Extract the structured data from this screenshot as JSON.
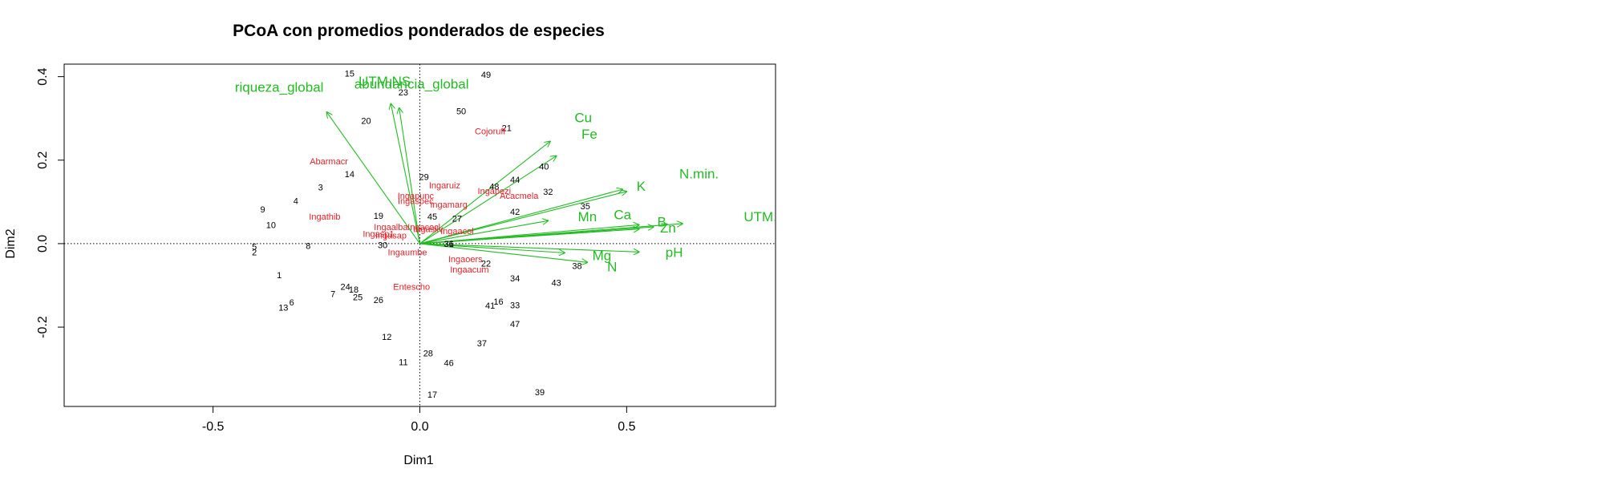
{
  "chart_data": {
    "type": "scatter",
    "title": "PCoA con promedios ponderados de especies",
    "xlabel": "Dim1",
    "ylabel": "Dim2",
    "xlim": [
      -0.86,
      0.86
    ],
    "ylim": [
      -0.39,
      0.43
    ],
    "x_ticks": [
      -0.5,
      0.0,
      0.5
    ],
    "x_tick_labels": [
      "-0.5",
      "0.0",
      "0.5"
    ],
    "y_ticks": [
      -0.2,
      0.0,
      0.2,
      0.4
    ],
    "y_tick_labels": [
      "-0.2",
      "0.0",
      "0.2",
      "0.4"
    ],
    "reference_lines": [
      0,
      0
    ],
    "colors": {
      "sites": "#000000",
      "species": "#e8202a",
      "vectors": "#22bb22"
    },
    "sites": [
      {
        "label": "1",
        "x": -0.34,
        "y": -0.075
      },
      {
        "label": "2",
        "x": -0.4,
        "y": -0.02
      },
      {
        "label": "5",
        "x": -0.4,
        "y": -0.007
      },
      {
        "label": "3",
        "x": -0.24,
        "y": 0.135
      },
      {
        "label": "4",
        "x": -0.3,
        "y": 0.103
      },
      {
        "label": "6",
        "x": -0.31,
        "y": -0.14
      },
      {
        "label": "7",
        "x": -0.21,
        "y": -0.12
      },
      {
        "label": "8",
        "x": -0.27,
        "y": -0.005
      },
      {
        "label": "9",
        "x": -0.38,
        "y": 0.082
      },
      {
        "label": "10",
        "x": -0.36,
        "y": 0.045
      },
      {
        "label": "11",
        "x": -0.04,
        "y": -0.283
      },
      {
        "label": "12",
        "x": -0.08,
        "y": -0.223
      },
      {
        "label": "13",
        "x": -0.33,
        "y": -0.153
      },
      {
        "label": "14",
        "x": -0.17,
        "y": 0.167
      },
      {
        "label": "15",
        "x": -0.17,
        "y": 0.408
      },
      {
        "label": "16",
        "x": 0.19,
        "y": -0.138
      },
      {
        "label": "17",
        "x": 0.03,
        "y": -0.361
      },
      {
        "label": "18",
        "x": -0.16,
        "y": -0.11
      },
      {
        "label": "19",
        "x": -0.1,
        "y": 0.067
      },
      {
        "label": "20",
        "x": -0.13,
        "y": 0.295
      },
      {
        "label": "21",
        "x": 0.21,
        "y": 0.277
      },
      {
        "label": "22",
        "x": 0.16,
        "y": -0.047
      },
      {
        "label": "23",
        "x": -0.04,
        "y": 0.363
      },
      {
        "label": "24",
        "x": -0.18,
        "y": -0.103
      },
      {
        "label": "25",
        "x": -0.15,
        "y": -0.128
      },
      {
        "label": "26",
        "x": -0.1,
        "y": -0.135
      },
      {
        "label": "27",
        "x": 0.09,
        "y": 0.06
      },
      {
        "label": "28",
        "x": 0.02,
        "y": -0.262
      },
      {
        "label": "29",
        "x": 0.01,
        "y": 0.16
      },
      {
        "label": "30",
        "x": -0.09,
        "y": -0.003
      },
      {
        "label": "31",
        "x": 0.07,
        "y": 0.0
      },
      {
        "label": "32",
        "x": 0.31,
        "y": 0.125
      },
      {
        "label": "33",
        "x": 0.23,
        "y": -0.147
      },
      {
        "label": "34",
        "x": 0.23,
        "y": -0.083
      },
      {
        "label": "35",
        "x": 0.4,
        "y": 0.09
      },
      {
        "label": "36",
        "x": 0.07,
        "y": 0.0
      },
      {
        "label": "37",
        "x": 0.15,
        "y": -0.238
      },
      {
        "label": "38",
        "x": 0.38,
        "y": -0.053
      },
      {
        "label": "39",
        "x": 0.29,
        "y": -0.355
      },
      {
        "label": "40",
        "x": 0.3,
        "y": 0.185
      },
      {
        "label": "41",
        "x": 0.17,
        "y": -0.148
      },
      {
        "label": "42",
        "x": 0.23,
        "y": 0.077
      },
      {
        "label": "43",
        "x": 0.33,
        "y": -0.093
      },
      {
        "label": "44",
        "x": 0.23,
        "y": 0.153
      },
      {
        "label": "45",
        "x": 0.03,
        "y": 0.065
      },
      {
        "label": "46",
        "x": 0.07,
        "y": -0.285
      },
      {
        "label": "47",
        "x": 0.23,
        "y": -0.192
      },
      {
        "label": "48",
        "x": 0.18,
        "y": 0.137
      },
      {
        "label": "49",
        "x": 0.16,
        "y": 0.405
      },
      {
        "label": "50",
        "x": 0.1,
        "y": 0.318
      }
    ],
    "species": [
      {
        "label": "Abarmacr",
        "x": -0.22,
        "y": 0.198
      },
      {
        "label": "Cojoruff",
        "x": 0.17,
        "y": 0.27
      },
      {
        "label": "Ingaruiz",
        "x": 0.06,
        "y": 0.14
      },
      {
        "label": "Ingapunc",
        "x": -0.01,
        "y": 0.115
      },
      {
        "label": "Ingaspec",
        "x": -0.01,
        "y": 0.103
      },
      {
        "label": "Ingamarg",
        "x": 0.07,
        "y": 0.094
      },
      {
        "label": "Ingathib",
        "x": -0.23,
        "y": 0.065
      },
      {
        "label": "Ingapezi",
        "x": 0.18,
        "y": 0.127
      },
      {
        "label": "Acacmela",
        "x": 0.24,
        "y": 0.115
      },
      {
        "label": "Ingacocl",
        "x": 0.01,
        "y": 0.04
      },
      {
        "label": "Ingaacol",
        "x": 0.09,
        "y": 0.031
      },
      {
        "label": "Ingaalba",
        "x": -0.07,
        "y": 0.04
      },
      {
        "label": "Ingasp1",
        "x": -0.1,
        "y": 0.024
      },
      {
        "label": "Ingasap",
        "x": -0.07,
        "y": 0.02
      },
      {
        "label": "Ingasilv",
        "x": 0.02,
        "y": 0.035
      },
      {
        "label": "Ingaumbe",
        "x": -0.03,
        "y": -0.02
      },
      {
        "label": "Ingaoers",
        "x": 0.11,
        "y": -0.037
      },
      {
        "label": "Ingaacum",
        "x": 0.12,
        "y": -0.062
      },
      {
        "label": "Entescho",
        "x": -0.02,
        "y": -0.103
      }
    ],
    "vectors": [
      {
        "label": "riqueza_global",
        "x": -0.225,
        "y": 0.315,
        "lx": -0.34,
        "ly": 0.375
      },
      {
        "label": "UTM.NS",
        "x": -0.07,
        "y": 0.335,
        "lx": -0.085,
        "ly": 0.39
      },
      {
        "label": "abundancia_global",
        "x": -0.05,
        "y": 0.325,
        "lx": -0.02,
        "ly": 0.383
      },
      {
        "label": "Cu",
        "x": 0.315,
        "y": 0.245,
        "lx": 0.395,
        "ly": 0.302
      },
      {
        "label": "Fe",
        "x": 0.33,
        "y": 0.21,
        "lx": 0.41,
        "ly": 0.263
      },
      {
        "label": "N.min.",
        "x": 0.49,
        "y": 0.13,
        "lx": 0.675,
        "ly": 0.168
      },
      {
        "label": "K",
        "x": 0.5,
        "y": 0.125,
        "lx": 0.535,
        "ly": 0.138
      },
      {
        "label": "UTM.EW",
        "x": 0.635,
        "y": 0.048,
        "lx": 0.85,
        "ly": 0.065
      },
      {
        "label": "Mn",
        "x": 0.31,
        "y": 0.055,
        "lx": 0.405,
        "ly": 0.065
      },
      {
        "label": "Ca",
        "x": 0.53,
        "y": 0.045,
        "lx": 0.49,
        "ly": 0.07
      },
      {
        "label": "B",
        "x": 0.565,
        "y": 0.04,
        "lx": 0.585,
        "ly": 0.053
      },
      {
        "label": "Zn",
        "x": 0.53,
        "y": 0.035,
        "lx": 0.6,
        "ly": 0.038
      },
      {
        "label": "pH",
        "x": 0.53,
        "y": -0.02,
        "lx": 0.615,
        "ly": -0.02
      },
      {
        "label": "Mg",
        "x": 0.35,
        "y": -0.022,
        "lx": 0.44,
        "ly": -0.028
      },
      {
        "label": "N",
        "x": 0.405,
        "y": -0.045,
        "lx": 0.465,
        "ly": -0.055
      }
    ]
  }
}
